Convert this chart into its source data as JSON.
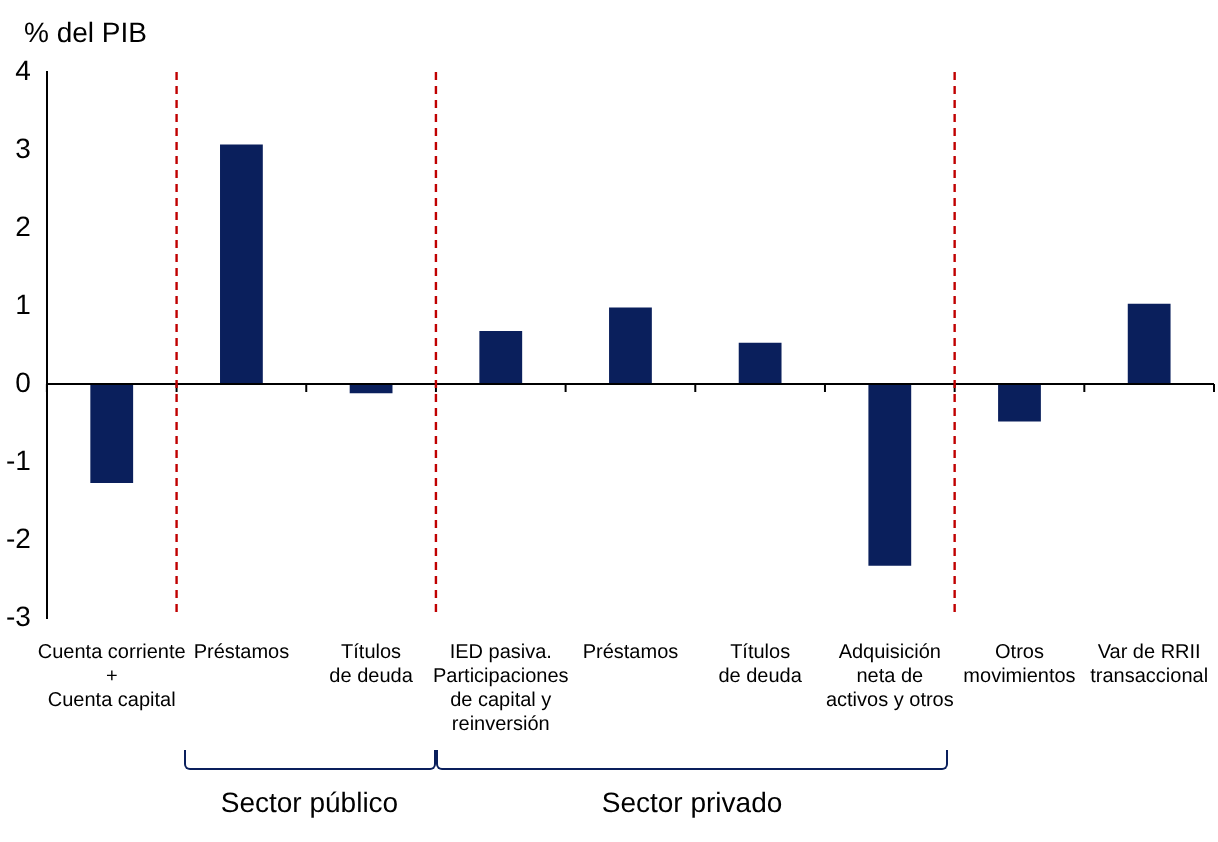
{
  "chart_data": {
    "type": "bar",
    "ylabel": "% del PIB",
    "categories": [
      "Cuenta corriente\n+\nCuenta capital",
      "Préstamos",
      "Títulos\nde deuda",
      "IED pasiva.\nParticipaciones\nde capital y\nreinversión",
      "Préstamos",
      "Títulos\nde deuda",
      "Adquisición\nneta de\nactivos y otros",
      "Otros\nmovimientos",
      "Var de RRII\ntransaccional"
    ],
    "values": [
      -1.27,
      3.07,
      -0.12,
      0.68,
      0.98,
      0.53,
      -2.33,
      -0.48,
      1.03
    ],
    "color": "#0a1f5c",
    "ylim": [
      -3,
      4
    ],
    "yticks": [
      -3,
      -2,
      -1,
      0,
      1,
      2,
      3,
      4
    ],
    "annotations": [
      "Sector público",
      "Sector privado"
    ],
    "legend": false
  }
}
